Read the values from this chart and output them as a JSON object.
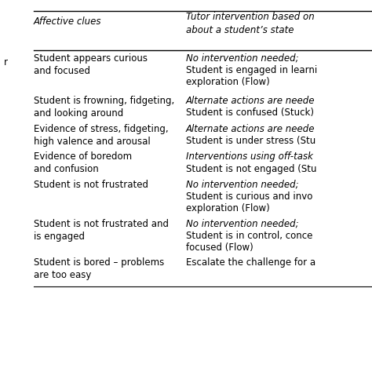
{
  "header_col1": "Affective clues",
  "header_col2": "Tutor intervention based on\nabout a student’s state",
  "left_label": "r",
  "rows": [
    {
      "col1": "Student appears curious\nand focused",
      "col2_lines": [
        "No intervention needed;",
        "Student is engaged in learni",
        "exploration (Flow)"
      ],
      "col2_italic": [
        true,
        false,
        false
      ]
    },
    {
      "col1": "Student is frowning, fidgeting,\nand looking around",
      "col2_lines": [
        "Alternate actions are neede",
        "Student is confused (Stuck)"
      ],
      "col2_italic": [
        true,
        false
      ]
    },
    {
      "col1": "Evidence of stress, fidgeting,\nhigh valence and arousal",
      "col2_lines": [
        "Alternate actions are neede",
        "Student is under stress (Stu"
      ],
      "col2_italic": [
        true,
        false
      ]
    },
    {
      "col1": "Evidence of boredom\nand confusion",
      "col2_lines": [
        "Interventions using off-task",
        "Student is not engaged (Stu"
      ],
      "col2_italic": [
        true,
        false
      ]
    },
    {
      "col1": "Student is not frustrated",
      "col2_lines": [
        "No intervention needed;",
        "Student is curious and invo",
        "exploration (Flow)"
      ],
      "col2_italic": [
        true,
        false,
        false
      ]
    },
    {
      "col1": "Student is not frustrated and\nis engaged",
      "col2_lines": [
        "No intervention needed;",
        "Student is in control, conce",
        "focused (Flow)"
      ],
      "col2_italic": [
        true,
        false,
        false
      ]
    },
    {
      "col1": "Student is bored – problems\nare too easy",
      "col2_lines": [
        "Escalate the challenge for a"
      ],
      "col2_italic": [
        false
      ]
    }
  ],
  "bg_color": "#ffffff",
  "text_color": "#000000",
  "line_color": "#000000",
  "font_size": 8.5,
  "header_font_size": 8.5,
  "figsize": [
    4.74,
    4.74
  ],
  "dpi": 100
}
